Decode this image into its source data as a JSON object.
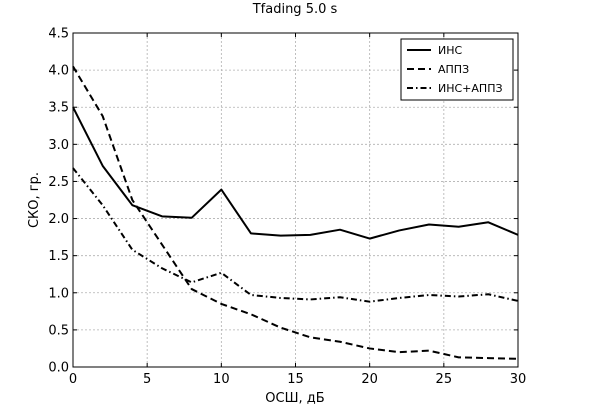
{
  "chart_data": {
    "type": "line",
    "title": "Tfading 5.0 s",
    "xlabel": "ОСШ, дБ",
    "ylabel": "СКО, гр.",
    "xlim": [
      0,
      30
    ],
    "ylim": [
      0,
      4.5
    ],
    "grid": true,
    "legend_position": "top-right",
    "x_ticks": [
      "0",
      "5",
      "10",
      "15",
      "20",
      "25",
      "30"
    ],
    "y_ticks": [
      "0.0",
      "0.5",
      "1.0",
      "1.5",
      "2.0",
      "2.5",
      "3.0",
      "3.5",
      "4.0",
      "4.5"
    ],
    "x": [
      0,
      2,
      4,
      6,
      8,
      10,
      12,
      14,
      16,
      18,
      20,
      22,
      24,
      26,
      28,
      30
    ],
    "series": [
      {
        "name": "ИНС",
        "line_style": "solid",
        "values": [
          3.5,
          2.71,
          2.18,
          2.03,
          2.01,
          2.39,
          1.8,
          1.77,
          1.78,
          1.85,
          1.73,
          1.84,
          1.92,
          1.89,
          1.95,
          1.78
        ]
      },
      {
        "name": "АППЗ",
        "line_style": "dashed",
        "values": [
          4.05,
          3.38,
          2.25,
          1.65,
          1.05,
          0.85,
          0.71,
          0.53,
          0.4,
          0.34,
          0.25,
          0.2,
          0.22,
          0.13,
          0.12,
          0.11
        ]
      },
      {
        "name": "ИНС+АППЗ",
        "line_style": "dashdot",
        "values": [
          2.68,
          2.18,
          1.58,
          1.33,
          1.14,
          1.27,
          0.97,
          0.93,
          0.91,
          0.94,
          0.88,
          0.93,
          0.97,
          0.95,
          0.98,
          0.89
        ]
      }
    ],
    "colors": {
      "line": "#000000",
      "grid": "#b0b0b0",
      "background": "#ffffff"
    }
  }
}
